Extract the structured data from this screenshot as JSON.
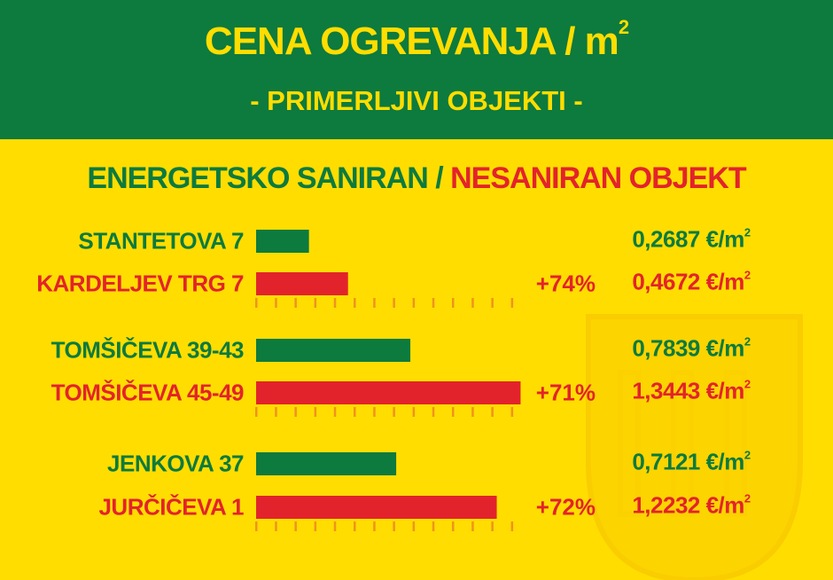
{
  "header": {
    "title": "CENA OGREVANJA / m",
    "title_sup": "2",
    "subtitle": "- PRIMERLJIVI OBJEKTI -"
  },
  "legend": {
    "renovated": "ENERGETSKO SANIRAN",
    "separator": " / ",
    "unrenovated": "NESANIRAN OBJEKT"
  },
  "colors": {
    "green": "#0d7a3e",
    "red": "#e3232b",
    "yellow": "#ffdd00",
    "tick": "#f0931e"
  },
  "chart_data": {
    "type": "bar",
    "orientation": "horizontal",
    "unit": "€/m",
    "unit_sup": "2",
    "groups": [
      {
        "renovated": {
          "name": "STANTETOVA 7",
          "value": 0.2687,
          "label": "0,2687 €/m"
        },
        "unrenovated": {
          "name": "KARDELJEV TRG 7",
          "value": 0.4672,
          "label": "0,4672 €/m"
        },
        "diff": "+74%"
      },
      {
        "renovated": {
          "name": "TOMŠIČEVA 39-43",
          "value": 0.7839,
          "label": "0,7839 €/m"
        },
        "unrenovated": {
          "name": "TOMŠIČEVA 45-49",
          "value": 1.3443,
          "label": "1,3443 €/m"
        },
        "diff": "+71%"
      },
      {
        "renovated": {
          "name": "JENKOVA 37",
          "value": 0.7121,
          "label": "0,7121 €/m"
        },
        "unrenovated": {
          "name": "JURČIČEVA 1",
          "value": 1.2232,
          "label": "1,2232 €/m"
        },
        "diff": "+72%"
      }
    ],
    "xlim": [
      0,
      1.35
    ],
    "tick_step": 0.1
  }
}
